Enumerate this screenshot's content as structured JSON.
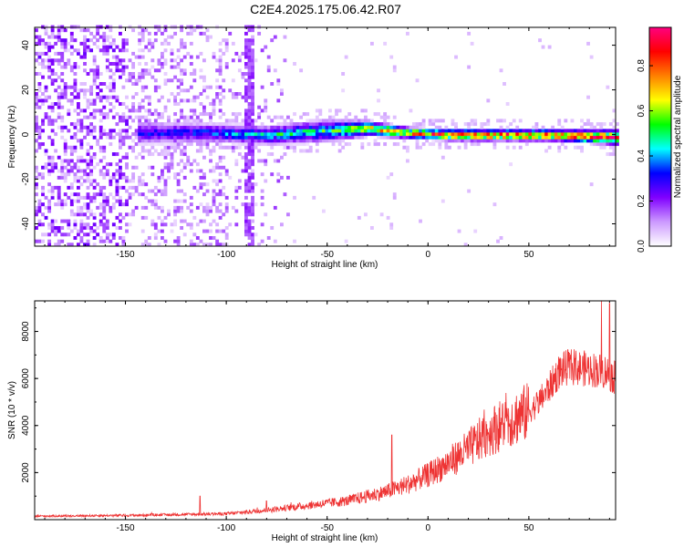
{
  "title": "C2E4.2025.175.06.42.R07",
  "chart_data": [
    {
      "type": "heatmap",
      "xlabel": "Height of straight line (km)",
      "ylabel": "Frequency (Hz)",
      "xlim": [
        -195,
        93
      ],
      "ylim": [
        -50,
        48
      ],
      "xticks": [
        -150,
        -100,
        -50,
        0,
        50
      ],
      "yticks": [
        -40,
        -20,
        0,
        20,
        40
      ],
      "colorbar": {
        "label": "Normalized spectral amplitude",
        "range": [
          0,
          0.97
        ],
        "ticks": [
          0.0,
          0.2,
          0.4,
          0.6,
          0.8
        ],
        "colormap": [
          "#ffffff",
          "#cc99ff",
          "#8000ff",
          "#0000ff",
          "#00ffff",
          "#00ff00",
          "#ffff00",
          "#ff8000",
          "#ff0000",
          "#ff0080"
        ]
      },
      "noise_region_x": [
        -195,
        -70
      ],
      "streak_x": -89,
      "band": [
        {
          "x": -145,
          "center": 0,
          "width": 6,
          "amp": 0.3
        },
        {
          "x": -110,
          "center": 0,
          "width": 5,
          "amp": 0.35
        },
        {
          "x": -80,
          "center": -1,
          "width": 5,
          "amp": 0.45
        },
        {
          "x": -50,
          "center": 1,
          "width": 6,
          "amp": 0.5
        },
        {
          "x": -30,
          "center": 2,
          "width": 4,
          "amp": 0.7
        },
        {
          "x": -10,
          "center": 0,
          "width": 3,
          "amp": 0.75
        },
        {
          "x": 10,
          "center": -1,
          "width": 3,
          "amp": 0.85
        },
        {
          "x": 30,
          "center": -1,
          "width": 3,
          "amp": 0.9
        },
        {
          "x": 60,
          "center": -1,
          "width": 3,
          "amp": 0.9
        },
        {
          "x": 93,
          "center": -2,
          "width": 4,
          "amp": 0.85
        }
      ]
    },
    {
      "type": "line",
      "xlabel": "Height of straight line (km)",
      "ylabel": "SNR (10 * v/v)",
      "xlim": [
        -195,
        93
      ],
      "ylim": [
        0,
        9300
      ],
      "xticks": [
        -150,
        -100,
        -50,
        0,
        50
      ],
      "yticks": [
        2000,
        4000,
        6000,
        8000
      ],
      "color": "#ee3333",
      "envelope_x": [
        -195,
        -150,
        -100,
        -80,
        -60,
        -40,
        -30,
        -20,
        -10,
        0,
        10,
        20,
        30,
        40,
        50,
        55,
        60,
        65,
        70,
        80,
        88,
        93
      ],
      "envelope_y": [
        150,
        180,
        250,
        400,
        600,
        800,
        1000,
        1200,
        1500,
        1900,
        2400,
        3000,
        3700,
        4200,
        4600,
        5000,
        5600,
        6300,
        6500,
        6400,
        6300,
        6000
      ],
      "spikes": [
        {
          "x": -113,
          "y": 1000
        },
        {
          "x": -80,
          "y": 800
        },
        {
          "x": -18,
          "y": 3600
        },
        {
          "x": 90,
          "y": 9200
        }
      ]
    }
  ]
}
